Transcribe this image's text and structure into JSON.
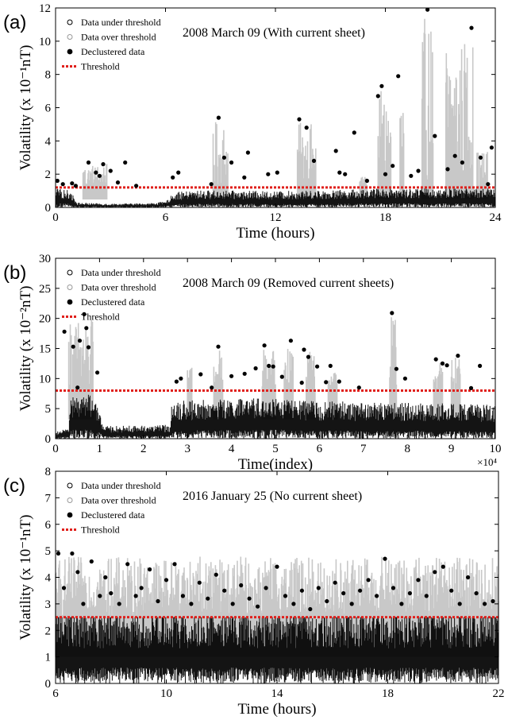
{
  "figure": {
    "colors": {
      "under": "#000000",
      "over": "#c8c8c8",
      "declustered": "#000000",
      "threshold": "#e0201c"
    }
  },
  "chart_data": [
    {
      "panel_label": "(a)",
      "type": "scatter",
      "title": "2008 March 09 (With current sheet)",
      "xlabel": "Time (hours)",
      "ylabel": "Volatility (x 10⁻¹nT)",
      "xlim": [
        0,
        24
      ],
      "ylim": [
        0,
        12
      ],
      "xticks": [
        0,
        6,
        12,
        18,
        24
      ],
      "xtick_labels": [
        "0",
        "6",
        "12",
        "18",
        "24"
      ],
      "yticks": [
        0,
        2,
        4,
        6,
        8,
        10,
        12
      ],
      "ytick_labels": [
        "0",
        "2",
        "4",
        "6",
        "8",
        "10",
        "12"
      ],
      "x_multiplier": "",
      "threshold": 1.2,
      "legend": {
        "placement": "top-left",
        "entries": [
          "Data under threshold",
          "Data over threshold",
          "Declustered data",
          "Threshold"
        ]
      },
      "base_level": [
        [
          0,
          1.0
        ],
        [
          0.8,
          0.9
        ],
        [
          1.2,
          0.25
        ],
        [
          3,
          0.2
        ],
        [
          5,
          0.22
        ],
        [
          6,
          0.3
        ],
        [
          6.5,
          0.8
        ],
        [
          8,
          0.9
        ],
        [
          12,
          0.85
        ],
        [
          15,
          0.9
        ],
        [
          18,
          1.0
        ],
        [
          24,
          1.0
        ]
      ],
      "over_spans": [
        [
          1.5,
          2.8
        ],
        [
          8.6,
          9.4
        ],
        [
          13.2,
          14.2
        ],
        [
          16.6,
          17.0
        ],
        [
          17.6,
          18.3
        ],
        [
          18.8,
          19.0
        ],
        [
          20.0,
          20.6
        ],
        [
          21.3,
          22.8
        ],
        [
          23.0,
          23.6
        ]
      ],
      "declustered": [
        [
          0.1,
          1.6
        ],
        [
          0.4,
          1.4
        ],
        [
          0.9,
          1.45
        ],
        [
          1.1,
          1.3
        ],
        [
          1.8,
          2.7
        ],
        [
          2.2,
          2.1
        ],
        [
          2.4,
          1.9
        ],
        [
          2.6,
          2.6
        ],
        [
          3.0,
          2.2
        ],
        [
          3.4,
          1.5
        ],
        [
          3.8,
          2.7
        ],
        [
          4.4,
          1.3
        ],
        [
          6.4,
          1.8
        ],
        [
          6.7,
          2.1
        ],
        [
          8.5,
          1.4
        ],
        [
          8.9,
          5.4
        ],
        [
          9.2,
          3.0
        ],
        [
          9.6,
          2.7
        ],
        [
          10.3,
          1.8
        ],
        [
          10.5,
          3.3
        ],
        [
          11.6,
          2.0
        ],
        [
          12.1,
          2.1
        ],
        [
          13.3,
          5.3
        ],
        [
          13.7,
          4.8
        ],
        [
          14.1,
          2.8
        ],
        [
          15.3,
          3.4
        ],
        [
          15.5,
          2.1
        ],
        [
          15.8,
          2.0
        ],
        [
          16.3,
          4.5
        ],
        [
          17.0,
          1.6
        ],
        [
          17.6,
          6.7
        ],
        [
          17.8,
          7.3
        ],
        [
          18.0,
          2.0
        ],
        [
          18.4,
          2.5
        ],
        [
          18.7,
          7.9
        ],
        [
          19.4,
          1.9
        ],
        [
          19.8,
          2.2
        ],
        [
          20.3,
          11.9
        ],
        [
          20.7,
          4.3
        ],
        [
          21.4,
          2.3
        ],
        [
          21.8,
          3.1
        ],
        [
          22.2,
          2.7
        ],
        [
          22.7,
          10.8
        ],
        [
          23.2,
          3.0
        ],
        [
          23.6,
          1.4
        ],
        [
          23.8,
          3.6
        ]
      ]
    },
    {
      "panel_label": "(b)",
      "type": "scatter",
      "title": "2008 March 09 (Removed current sheets)",
      "xlabel": "Time(index)",
      "ylabel": "Volatility (x 10⁻²nT)",
      "xlim": [
        0,
        10
      ],
      "ylim": [
        0,
        30
      ],
      "xticks": [
        0,
        1,
        2,
        3,
        4,
        5,
        6,
        7,
        8,
        9,
        10
      ],
      "xtick_labels": [
        "0",
        "1",
        "2",
        "3",
        "4",
        "5",
        "6",
        "7",
        "8",
        "9",
        "10"
      ],
      "yticks": [
        0,
        5,
        10,
        15,
        20,
        25,
        30
      ],
      "ytick_labels": [
        "0",
        "5",
        "10",
        "15",
        "20",
        "25",
        "30"
      ],
      "x_multiplier": "×10⁴",
      "threshold": 8,
      "legend": {
        "placement": "top-left",
        "entries": [
          "Data under threshold",
          "Data over threshold",
          "Declustered data",
          "Threshold"
        ]
      },
      "base_level": [
        [
          0,
          1.0
        ],
        [
          0.3,
          1.5
        ],
        [
          0.35,
          6
        ],
        [
          0.8,
          6.5
        ],
        [
          1.0,
          4
        ],
        [
          1.1,
          1.8
        ],
        [
          2.6,
          2.0
        ],
        [
          2.65,
          5.5
        ],
        [
          5.3,
          6
        ],
        [
          5.4,
          5.5
        ],
        [
          9.8,
          5
        ]
      ],
      "over_spans": [
        [
          0.3,
          0.85
        ],
        [
          3.0,
          3.1
        ],
        [
          3.6,
          3.8
        ],
        [
          4.7,
          5.0
        ],
        [
          5.2,
          5.4
        ],
        [
          5.7,
          5.9
        ],
        [
          6.2,
          6.4
        ],
        [
          7.6,
          7.75
        ],
        [
          8.6,
          8.8
        ],
        [
          9.0,
          9.2
        ]
      ],
      "declustered": [
        [
          0.2,
          17.8
        ],
        [
          0.4,
          15.3
        ],
        [
          0.5,
          8.5
        ],
        [
          0.55,
          16.3
        ],
        [
          0.65,
          20.7
        ],
        [
          0.7,
          18.4
        ],
        [
          0.75,
          15.2
        ],
        [
          0.95,
          11.0
        ],
        [
          2.75,
          9.5
        ],
        [
          2.85,
          10.0
        ],
        [
          3.3,
          10.7
        ],
        [
          3.55,
          8.5
        ],
        [
          3.7,
          15.3
        ],
        [
          4.0,
          10.4
        ],
        [
          4.3,
          10.8
        ],
        [
          4.55,
          11.7
        ],
        [
          4.75,
          15.5
        ],
        [
          4.85,
          12.1
        ],
        [
          4.95,
          12.0
        ],
        [
          5.15,
          10.3
        ],
        [
          5.35,
          16.3
        ],
        [
          5.6,
          9.3
        ],
        [
          5.65,
          14.8
        ],
        [
          5.75,
          13.6
        ],
        [
          5.95,
          12.0
        ],
        [
          6.15,
          9.4
        ],
        [
          6.25,
          12.1
        ],
        [
          6.45,
          9.5
        ],
        [
          6.9,
          8.5
        ],
        [
          7.65,
          20.9
        ],
        [
          7.75,
          11.6
        ],
        [
          7.95,
          10.0
        ],
        [
          8.65,
          13.2
        ],
        [
          8.8,
          12.5
        ],
        [
          8.9,
          12.2
        ],
        [
          9.15,
          13.8
        ],
        [
          9.45,
          8.4
        ],
        [
          9.65,
          12.1
        ]
      ]
    },
    {
      "panel_label": "(c)",
      "type": "scatter",
      "title": "2016 January 25 (No current sheet)",
      "xlabel": "Time (hours)",
      "ylabel": "Volatility (x 10⁻¹nT)",
      "xlim": [
        6,
        22
      ],
      "ylim": [
        0,
        8
      ],
      "xticks": [
        6,
        10,
        14,
        18,
        22
      ],
      "xtick_labels": [
        "6",
        "10",
        "14",
        "18",
        "22"
      ],
      "yticks": [
        0,
        1,
        2,
        3,
        4,
        5,
        6,
        7,
        8
      ],
      "ytick_labels": [
        "0",
        "1",
        "2",
        "3",
        "4",
        "5",
        "6",
        "7",
        "8"
      ],
      "x_multiplier": "",
      "threshold": 2.5,
      "legend": {
        "placement": "top-left",
        "entries": [
          "Data under threshold",
          "Data over threshold",
          "Declustered data",
          "Threshold"
        ]
      },
      "base_level": [
        [
          6,
          2.4
        ],
        [
          22,
          2.4
        ]
      ],
      "over_spans": [
        [
          6.0,
          22.0
        ]
      ],
      "declustered": [
        [
          6.1,
          4.9
        ],
        [
          6.3,
          3.6
        ],
        [
          6.6,
          4.9
        ],
        [
          6.8,
          4.2
        ],
        [
          7.0,
          3.0
        ],
        [
          7.3,
          4.6
        ],
        [
          7.6,
          3.3
        ],
        [
          7.8,
          4.0
        ],
        [
          8.0,
          3.4
        ],
        [
          8.3,
          3.0
        ],
        [
          8.6,
          4.5
        ],
        [
          8.9,
          3.3
        ],
        [
          9.1,
          3.6
        ],
        [
          9.4,
          4.3
        ],
        [
          9.7,
          3.1
        ],
        [
          10.0,
          3.9
        ],
        [
          10.3,
          4.5
        ],
        [
          10.6,
          3.3
        ],
        [
          10.9,
          3.0
        ],
        [
          11.2,
          3.8
        ],
        [
          11.5,
          3.2
        ],
        [
          11.8,
          4.1
        ],
        [
          12.1,
          3.5
        ],
        [
          12.4,
          3.0
        ],
        [
          12.7,
          3.7
        ],
        [
          13.0,
          3.2
        ],
        [
          13.3,
          2.9
        ],
        [
          13.6,
          3.6
        ],
        [
          14.0,
          4.4
        ],
        [
          14.3,
          3.3
        ],
        [
          14.6,
          3.0
        ],
        [
          14.9,
          3.5
        ],
        [
          15.2,
          2.8
        ],
        [
          15.5,
          3.6
        ],
        [
          15.8,
          3.1
        ],
        [
          16.1,
          3.8
        ],
        [
          16.4,
          3.4
        ],
        [
          16.7,
          3.0
        ],
        [
          17.0,
          3.5
        ],
        [
          17.3,
          3.9
        ],
        [
          17.6,
          3.3
        ],
        [
          17.9,
          4.7
        ],
        [
          18.2,
          3.6
        ],
        [
          18.5,
          3.0
        ],
        [
          18.8,
          3.4
        ],
        [
          19.1,
          3.9
        ],
        [
          19.4,
          3.3
        ],
        [
          19.7,
          4.2
        ],
        [
          20.0,
          4.4
        ],
        [
          20.3,
          3.5
        ],
        [
          20.6,
          3.0
        ],
        [
          20.9,
          4.0
        ],
        [
          21.2,
          3.4
        ],
        [
          21.5,
          3.0
        ],
        [
          21.8,
          3.1
        ]
      ]
    }
  ]
}
